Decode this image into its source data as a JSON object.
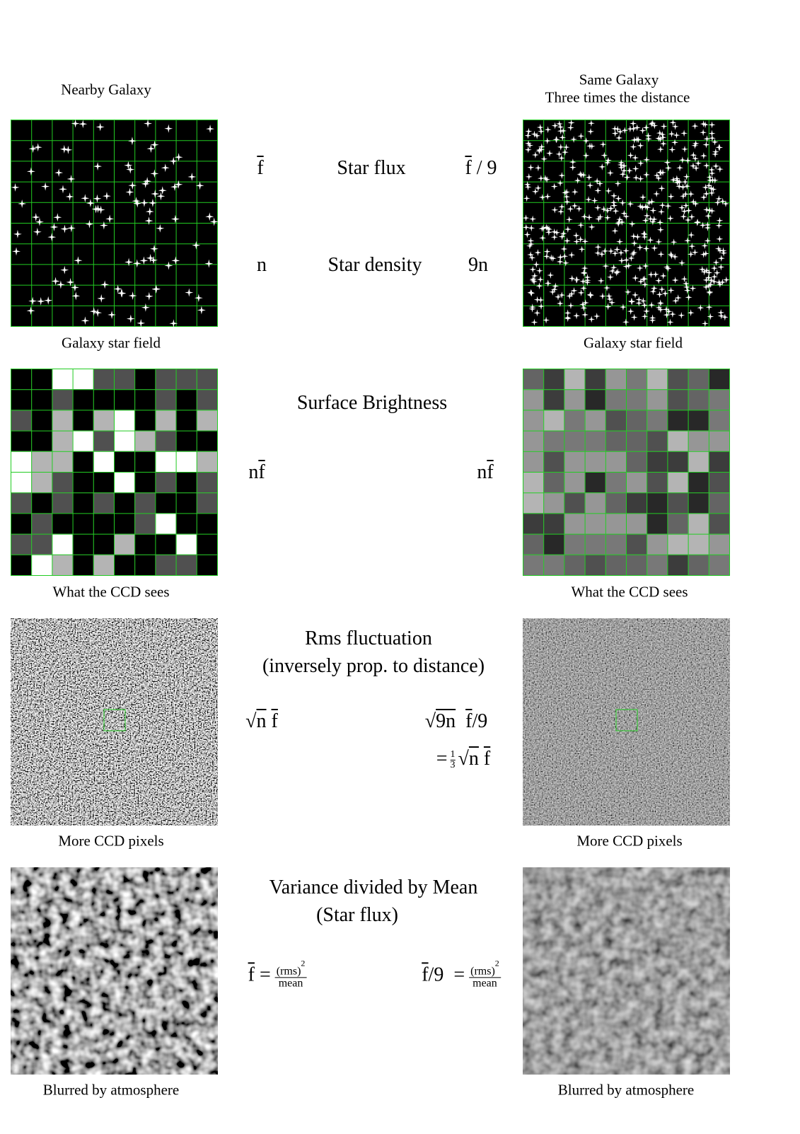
{
  "headings": {
    "left": "Nearby Galaxy",
    "right": [
      "Same Galaxy",
      "Three times the distance"
    ]
  },
  "captions": {
    "left": [
      "Galaxy star field",
      "What the CCD sees",
      "More CCD pixels",
      "Blurred by atmosphere"
    ],
    "right": [
      "Galaxy star field",
      "What the CCD sees",
      "More CCD pixels",
      "Blurred by atmosphere"
    ]
  },
  "star_flux": {
    "label": "Star flux",
    "left": "f",
    "right": [
      "f",
      "/ 9"
    ]
  },
  "star_density": {
    "label": "Star density",
    "left": "n",
    "right": "9n"
  },
  "surface_brightness": {
    "label": "Surface Brightness",
    "left": [
      "n",
      "f"
    ],
    "right": [
      "n",
      "f"
    ]
  },
  "rms": {
    "label": [
      "Rms fluctuation",
      "(inversely prop. to distance)"
    ],
    "left": [
      "√",
      "n",
      "f"
    ],
    "right": [
      "√",
      "9n",
      "f",
      "/9"
    ],
    "equivalent": [
      "=",
      "1",
      "3",
      "√",
      "n",
      "f"
    ]
  },
  "variance": {
    "label": [
      "Variance divided by Mean",
      "(Star flux)"
    ],
    "left": {
      "lhs": "f",
      "eq": "=",
      "numerator": "(rms)",
      "exponent": "2",
      "denominator": "mean"
    },
    "right": {
      "lhs": [
        "f",
        "/9"
      ],
      "eq": "=",
      "numerator": "(rms)",
      "exponent": "2",
      "denominator": "mean"
    }
  }
}
